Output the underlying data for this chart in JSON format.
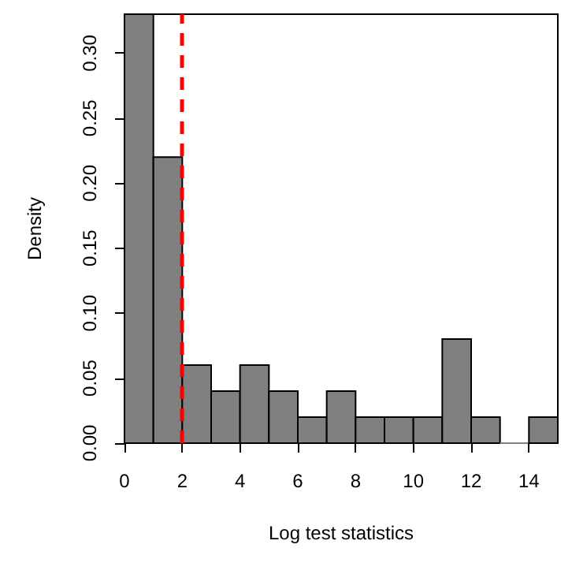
{
  "chart_data": {
    "type": "histogram",
    "xlabel": "Log test statistics",
    "ylabel": "Density",
    "bins": [
      0,
      1,
      2,
      3,
      4,
      5,
      6,
      7,
      8,
      9,
      10,
      11,
      12,
      13,
      14,
      15
    ],
    "values": [
      0.33,
      0.22,
      0.06,
      0.04,
      0.06,
      0.04,
      0.02,
      0.04,
      0.02,
      0.02,
      0.02,
      0.08,
      0.02,
      0,
      0.02
    ],
    "color": "#808080",
    "xlim": [
      0,
      15
    ],
    "xticks": [
      0,
      2,
      4,
      6,
      8,
      10,
      12,
      14
    ],
    "ylim": [
      0,
      0.33
    ],
    "yticks": [
      {
        "value": 0,
        "label": "0.00"
      },
      0.05,
      {
        "value": 0.1,
        "label": "0.10"
      },
      0.15,
      {
        "value": 0.2,
        "label": "0.20"
      },
      0.25,
      {
        "value": 0.3,
        "label": "0.30"
      }
    ],
    "ref_lines": [
      {
        "axis": "x",
        "value": 2,
        "color": "#ff0000",
        "line_style": "dashed"
      }
    ]
  }
}
